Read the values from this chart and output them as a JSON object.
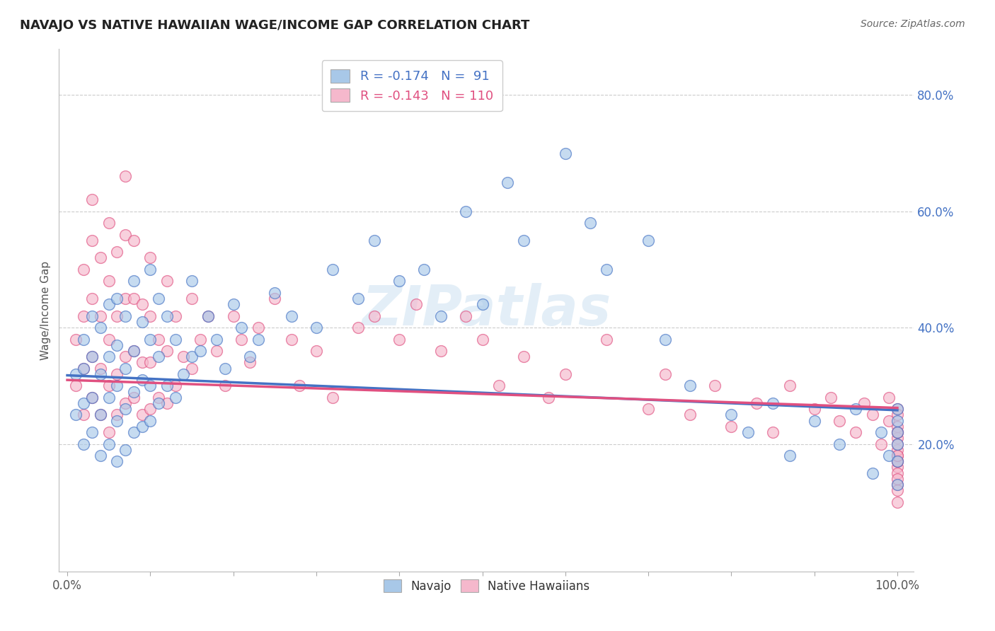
{
  "title": "NAVAJO VS NATIVE HAWAIIAN WAGE/INCOME GAP CORRELATION CHART",
  "source": "Source: ZipAtlas.com",
  "ylabel": "Wage/Income Gap",
  "xlim": [
    -0.01,
    1.02
  ],
  "ylim": [
    -0.02,
    0.88
  ],
  "xticks": [
    0.0,
    0.1,
    0.2,
    0.3,
    0.4,
    0.5,
    0.6,
    0.7,
    0.8,
    0.9,
    1.0
  ],
  "xticklabels": [
    "0.0%",
    "",
    "",
    "",
    "",
    "",
    "",
    "",
    "",
    "",
    "100.0%"
  ],
  "yticks": [
    0.2,
    0.4,
    0.6,
    0.8
  ],
  "yticklabels": [
    "20.0%",
    "40.0%",
    "60.0%",
    "80.0%"
  ],
  "navajo_R": "-0.174",
  "navajo_N": "91",
  "hawaiian_R": "-0.143",
  "hawaiian_N": "110",
  "navajo_color": "#a8c8e8",
  "hawaiian_color": "#f5b8cc",
  "navajo_line_color": "#4472c4",
  "hawaiian_line_color": "#e05080",
  "watermark_text": "ZIPatlas",
  "background_color": "#ffffff",
  "grid_color": "#cccccc",
  "navajo_trend_x0": 0.0,
  "navajo_trend_y0": 0.318,
  "navajo_trend_x1": 1.0,
  "navajo_trend_y1": 0.258,
  "hawaiian_trend_x0": 0.0,
  "hawaiian_trend_y0": 0.31,
  "hawaiian_trend_x1": 1.0,
  "hawaiian_trend_y1": 0.262,
  "navajo_x": [
    0.01,
    0.01,
    0.02,
    0.02,
    0.02,
    0.02,
    0.03,
    0.03,
    0.03,
    0.03,
    0.04,
    0.04,
    0.04,
    0.04,
    0.05,
    0.05,
    0.05,
    0.05,
    0.06,
    0.06,
    0.06,
    0.06,
    0.06,
    0.07,
    0.07,
    0.07,
    0.07,
    0.08,
    0.08,
    0.08,
    0.08,
    0.09,
    0.09,
    0.09,
    0.1,
    0.1,
    0.1,
    0.1,
    0.11,
    0.11,
    0.11,
    0.12,
    0.12,
    0.13,
    0.13,
    0.14,
    0.15,
    0.15,
    0.16,
    0.17,
    0.18,
    0.19,
    0.2,
    0.21,
    0.22,
    0.23,
    0.25,
    0.27,
    0.3,
    0.32,
    0.35,
    0.37,
    0.4,
    0.43,
    0.45,
    0.48,
    0.5,
    0.53,
    0.55,
    0.6,
    0.63,
    0.65,
    0.7,
    0.72,
    0.75,
    0.8,
    0.82,
    0.85,
    0.87,
    0.9,
    0.93,
    0.95,
    0.97,
    0.98,
    0.99,
    1.0,
    1.0,
    1.0,
    1.0,
    1.0,
    1.0
  ],
  "navajo_y": [
    0.25,
    0.32,
    0.2,
    0.27,
    0.33,
    0.38,
    0.22,
    0.28,
    0.35,
    0.42,
    0.18,
    0.25,
    0.32,
    0.4,
    0.2,
    0.28,
    0.35,
    0.44,
    0.17,
    0.24,
    0.3,
    0.37,
    0.45,
    0.19,
    0.26,
    0.33,
    0.42,
    0.22,
    0.29,
    0.36,
    0.48,
    0.23,
    0.31,
    0.41,
    0.24,
    0.3,
    0.38,
    0.5,
    0.27,
    0.35,
    0.45,
    0.3,
    0.42,
    0.28,
    0.38,
    0.32,
    0.35,
    0.48,
    0.36,
    0.42,
    0.38,
    0.33,
    0.44,
    0.4,
    0.35,
    0.38,
    0.46,
    0.42,
    0.4,
    0.5,
    0.45,
    0.55,
    0.48,
    0.5,
    0.42,
    0.6,
    0.44,
    0.65,
    0.55,
    0.7,
    0.58,
    0.5,
    0.55,
    0.38,
    0.3,
    0.25,
    0.22,
    0.27,
    0.18,
    0.24,
    0.2,
    0.26,
    0.15,
    0.22,
    0.18,
    0.24,
    0.2,
    0.17,
    0.26,
    0.13,
    0.22
  ],
  "hawaiian_x": [
    0.01,
    0.01,
    0.02,
    0.02,
    0.02,
    0.02,
    0.03,
    0.03,
    0.03,
    0.03,
    0.03,
    0.04,
    0.04,
    0.04,
    0.04,
    0.05,
    0.05,
    0.05,
    0.05,
    0.05,
    0.06,
    0.06,
    0.06,
    0.06,
    0.07,
    0.07,
    0.07,
    0.07,
    0.07,
    0.08,
    0.08,
    0.08,
    0.08,
    0.09,
    0.09,
    0.09,
    0.1,
    0.1,
    0.1,
    0.1,
    0.11,
    0.11,
    0.12,
    0.12,
    0.12,
    0.13,
    0.13,
    0.14,
    0.15,
    0.15,
    0.16,
    0.17,
    0.18,
    0.19,
    0.2,
    0.21,
    0.22,
    0.23,
    0.25,
    0.27,
    0.28,
    0.3,
    0.32,
    0.35,
    0.37,
    0.4,
    0.42,
    0.45,
    0.48,
    0.5,
    0.52,
    0.55,
    0.58,
    0.6,
    0.65,
    0.7,
    0.72,
    0.75,
    0.78,
    0.8,
    0.83,
    0.85,
    0.87,
    0.9,
    0.92,
    0.93,
    0.95,
    0.96,
    0.97,
    0.98,
    0.99,
    0.99,
    1.0,
    1.0,
    1.0,
    1.0,
    1.0,
    1.0,
    1.0,
    1.0,
    1.0,
    1.0,
    1.0,
    1.0,
    1.0,
    1.0,
    1.0,
    1.0,
    1.0,
    1.0
  ],
  "hawaiian_y": [
    0.3,
    0.38,
    0.25,
    0.33,
    0.42,
    0.5,
    0.28,
    0.35,
    0.45,
    0.55,
    0.62,
    0.25,
    0.33,
    0.42,
    0.52,
    0.22,
    0.3,
    0.38,
    0.48,
    0.58,
    0.25,
    0.32,
    0.42,
    0.53,
    0.27,
    0.35,
    0.45,
    0.56,
    0.66,
    0.28,
    0.36,
    0.45,
    0.55,
    0.25,
    0.34,
    0.44,
    0.26,
    0.34,
    0.42,
    0.52,
    0.28,
    0.38,
    0.27,
    0.36,
    0.48,
    0.3,
    0.42,
    0.35,
    0.33,
    0.45,
    0.38,
    0.42,
    0.36,
    0.3,
    0.42,
    0.38,
    0.34,
    0.4,
    0.45,
    0.38,
    0.3,
    0.36,
    0.28,
    0.4,
    0.42,
    0.38,
    0.44,
    0.36,
    0.42,
    0.38,
    0.3,
    0.35,
    0.28,
    0.32,
    0.38,
    0.26,
    0.32,
    0.25,
    0.3,
    0.23,
    0.27,
    0.22,
    0.3,
    0.26,
    0.28,
    0.24,
    0.22,
    0.27,
    0.25,
    0.2,
    0.24,
    0.28,
    0.22,
    0.26,
    0.18,
    0.21,
    0.25,
    0.16,
    0.19,
    0.23,
    0.17,
    0.13,
    0.2,
    0.15,
    0.12,
    0.17,
    0.1,
    0.22,
    0.18,
    0.14
  ]
}
